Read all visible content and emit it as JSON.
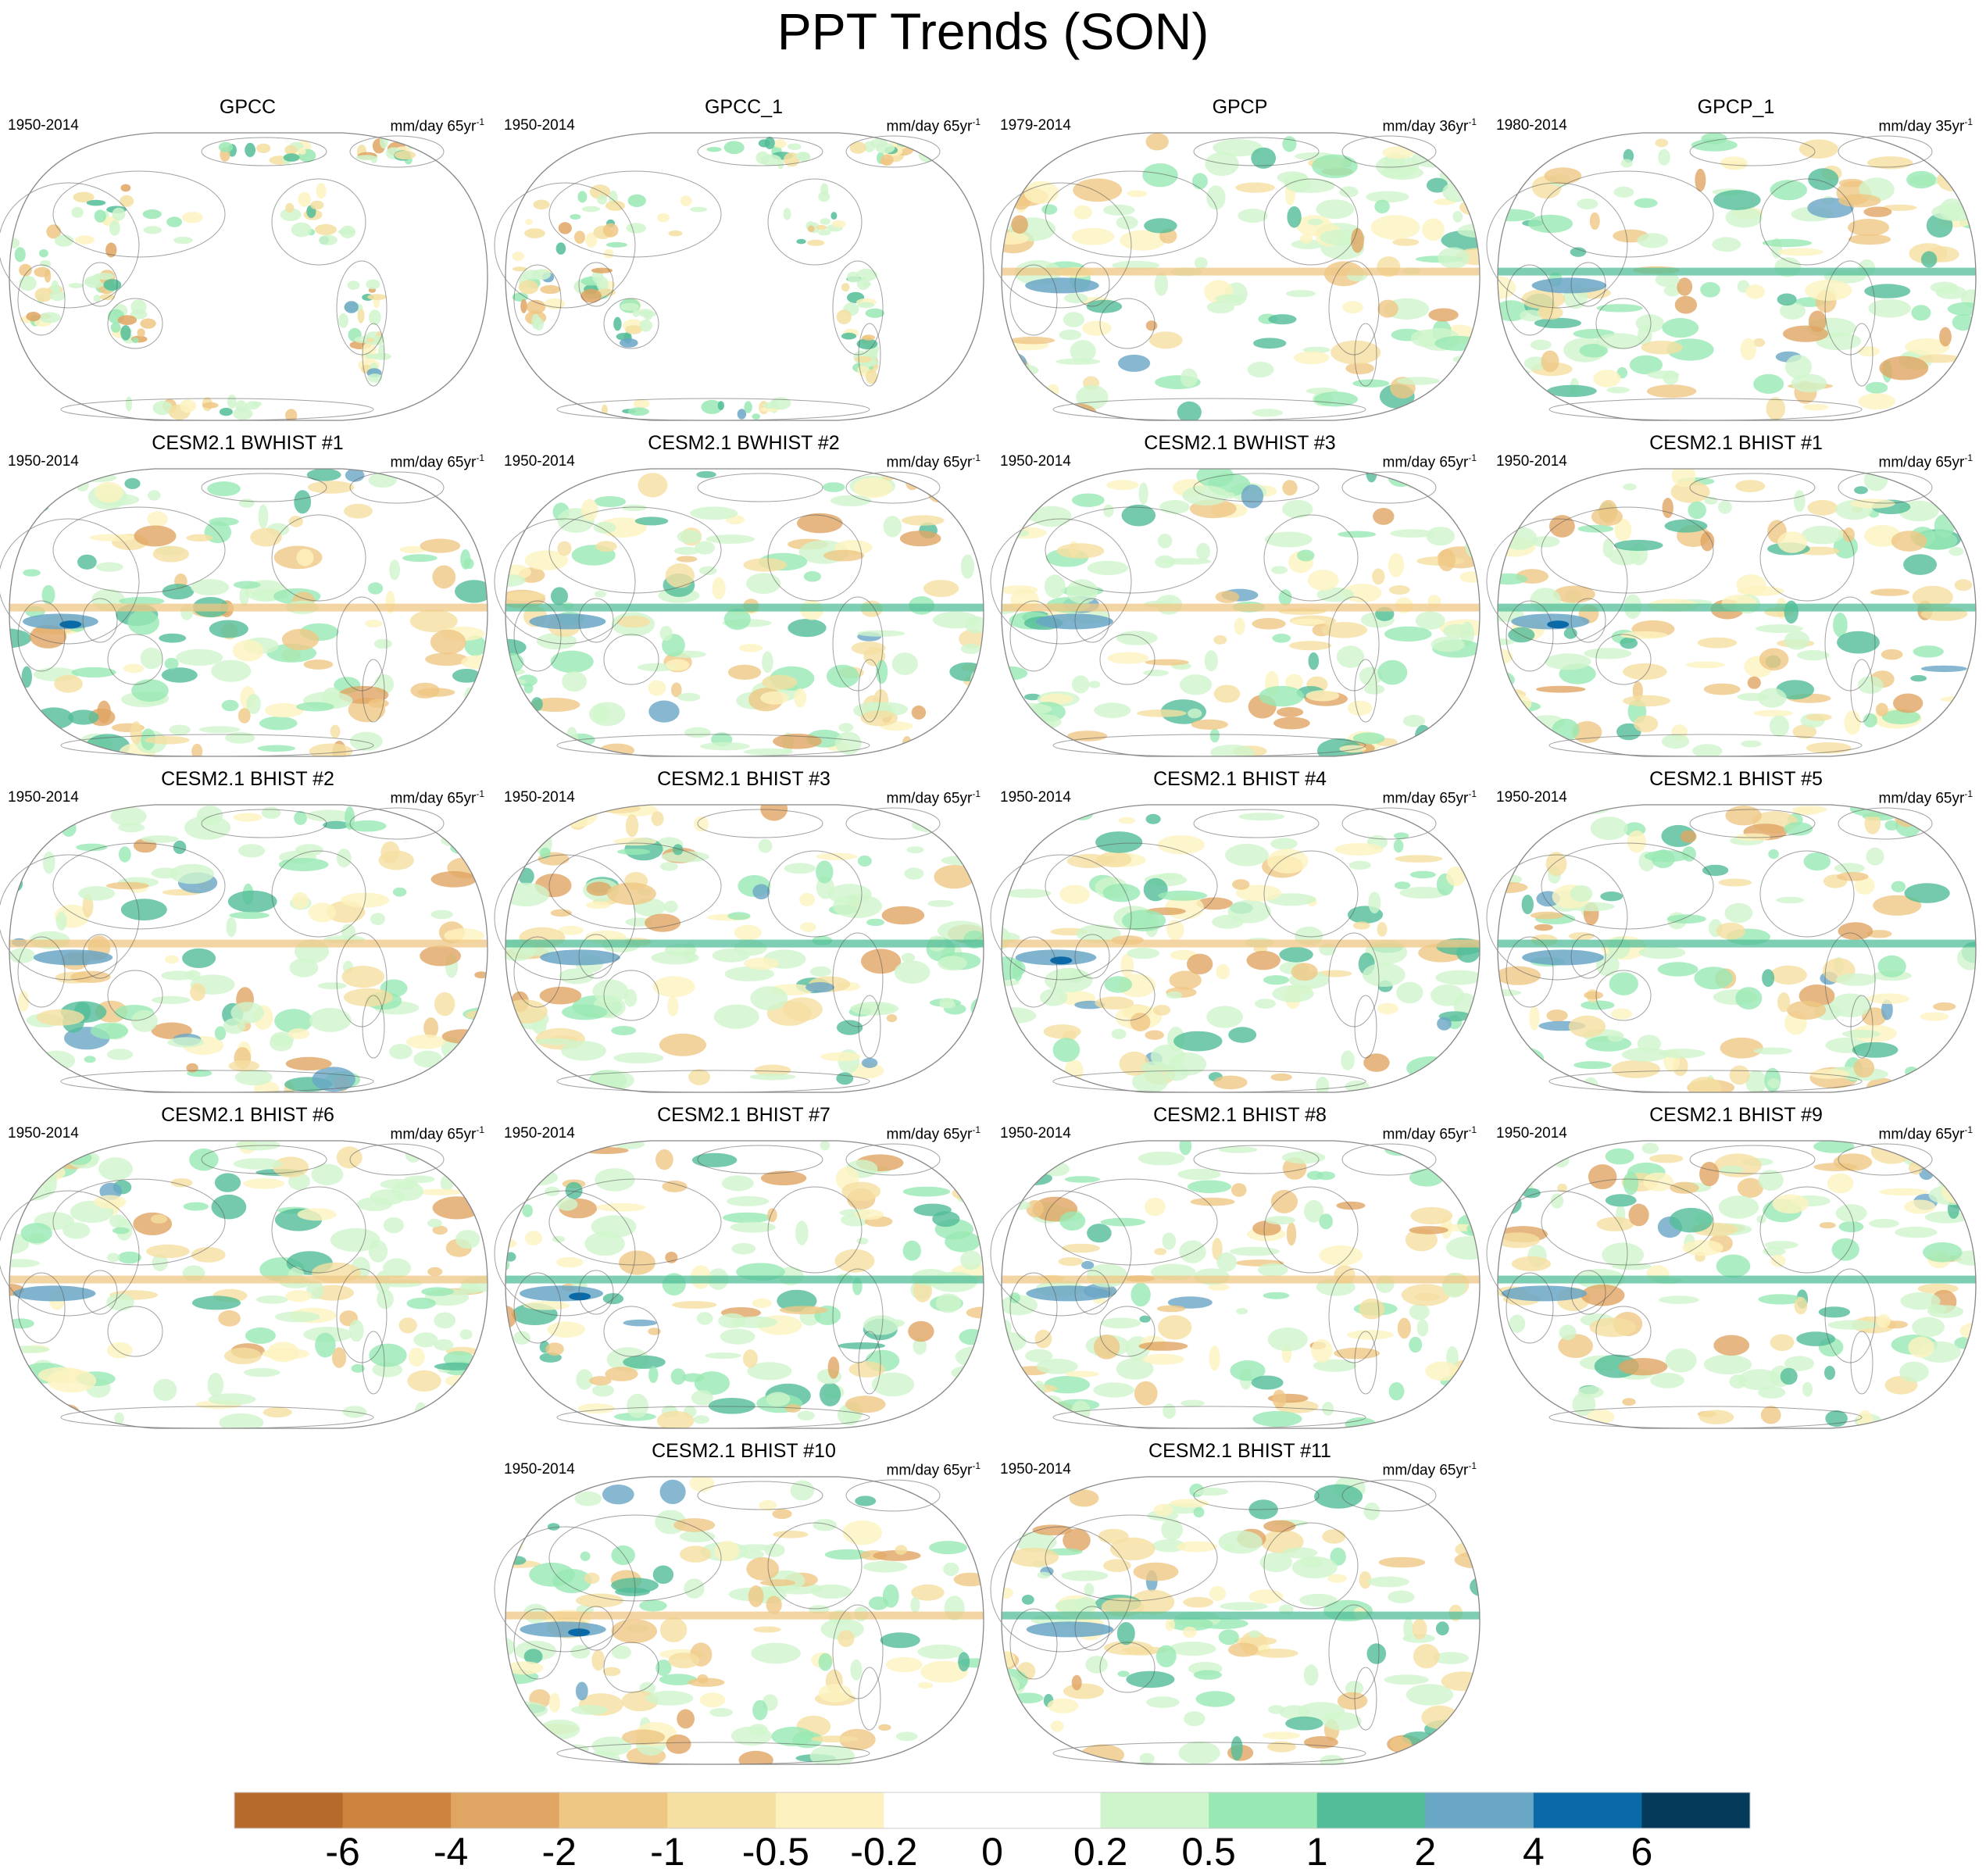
{
  "title": "PPT Trends (SON)",
  "colors": {
    "map_outline": "#888888",
    "coast": "#555555",
    "levels": [
      "#b66a2b",
      "#cc843e",
      "#e0a563",
      "#efc784",
      "#f5dfa1",
      "#fdf2bf",
      "#ffffff",
      "#ffffff",
      "#cff5cc",
      "#98e8b4",
      "#52bd98",
      "#6aa6c6",
      "#0a6aa8",
      "#053a5a"
    ]
  },
  "chart_data": {
    "type": "heatmap",
    "projection": "robinson (pacific-centered)",
    "colorbar": {
      "ticks": [
        "-6",
        "-4",
        "-2",
        "-1",
        "-0.5",
        "-0.2",
        "0",
        "0.2",
        "0.5",
        "1",
        "2",
        "4",
        "6"
      ],
      "bin_colors": [
        "#b66a2b",
        "#cc843e",
        "#e0a563",
        "#efc784",
        "#f5dfa1",
        "#fdf2bf",
        "#ffffff",
        "#ffffff",
        "#cff5cc",
        "#98e8b4",
        "#52bd98",
        "#6aa6c6",
        "#0a6aa8",
        "#053a5a"
      ]
    },
    "panels": [
      {
        "name": "GPCC",
        "period": "1950-2014",
        "units": "mm/day 65yr",
        "units_exp": "-1",
        "coverage": "land"
      },
      {
        "name": "GPCC_1",
        "period": "1950-2014",
        "units": "mm/day 65yr",
        "units_exp": "-1",
        "coverage": "land"
      },
      {
        "name": "GPCP",
        "period": "1979-2014",
        "units": "mm/day 36yr",
        "units_exp": "-1",
        "coverage": "global"
      },
      {
        "name": "GPCP_1",
        "period": "1980-2014",
        "units": "mm/day 35yr",
        "units_exp": "-1",
        "coverage": "global"
      },
      {
        "name": "CESM2.1 BWHIST #1",
        "period": "1950-2014",
        "units": "mm/day 65yr",
        "units_exp": "-1",
        "coverage": "global"
      },
      {
        "name": "CESM2.1 BWHIST #2",
        "period": "1950-2014",
        "units": "mm/day 65yr",
        "units_exp": "-1",
        "coverage": "global"
      },
      {
        "name": "CESM2.1 BWHIST #3",
        "period": "1950-2014",
        "units": "mm/day 65yr",
        "units_exp": "-1",
        "coverage": "global"
      },
      {
        "name": "CESM2.1 BHIST #1",
        "period": "1950-2014",
        "units": "mm/day 65yr",
        "units_exp": "-1",
        "coverage": "global"
      },
      {
        "name": "CESM2.1 BHIST #2",
        "period": "1950-2014",
        "units": "mm/day 65yr",
        "units_exp": "-1",
        "coverage": "global"
      },
      {
        "name": "CESM2.1 BHIST #3",
        "period": "1950-2014",
        "units": "mm/day 65yr",
        "units_exp": "-1",
        "coverage": "global"
      },
      {
        "name": "CESM2.1 BHIST #4",
        "period": "1950-2014",
        "units": "mm/day 65yr",
        "units_exp": "-1",
        "coverage": "global"
      },
      {
        "name": "CESM2.1 BHIST #5",
        "period": "1950-2014",
        "units": "mm/day 65yr",
        "units_exp": "-1",
        "coverage": "global"
      },
      {
        "name": "CESM2.1 BHIST #6",
        "period": "1950-2014",
        "units": "mm/day 65yr",
        "units_exp": "-1",
        "coverage": "global"
      },
      {
        "name": "CESM2.1 BHIST #7",
        "period": "1950-2014",
        "units": "mm/day 65yr",
        "units_exp": "-1",
        "coverage": "global"
      },
      {
        "name": "CESM2.1 BHIST #8",
        "period": "1950-2014",
        "units": "mm/day 65yr",
        "units_exp": "-1",
        "coverage": "global"
      },
      {
        "name": "CESM2.1 BHIST #9",
        "period": "1950-2014",
        "units": "mm/day 65yr",
        "units_exp": "-1",
        "coverage": "global"
      },
      {
        "name": "CESM2.1 BHIST #10",
        "period": "1950-2014",
        "units": "mm/day 65yr",
        "units_exp": "-1",
        "coverage": "global"
      },
      {
        "name": "CESM2.1 BHIST #11",
        "period": "1950-2014",
        "units": "mm/day 65yr",
        "units_exp": "-1",
        "coverage": "global"
      }
    ]
  }
}
